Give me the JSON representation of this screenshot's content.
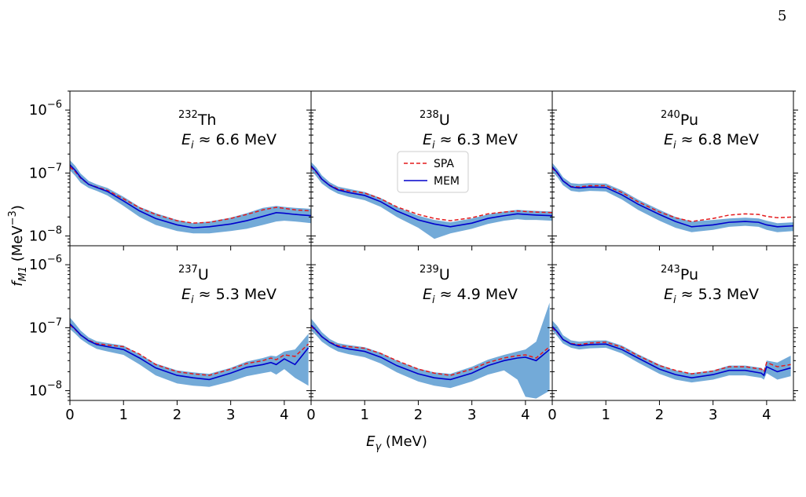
{
  "page_number": "5",
  "colors": {
    "spa": "#e41a1c",
    "mem": "#0000cc",
    "band": "#5a9bd1",
    "axis": "#000000"
  },
  "chart_data": {
    "type": "line",
    "layout": "2x3 grid of panels with shared axes",
    "x_axis": {
      "label_main": "E",
      "label_sub": "γ",
      "label_unit": " (MeV)",
      "ticks": [
        0,
        1,
        2,
        3,
        4
      ],
      "tick_labels": [
        "0",
        "1",
        "2",
        "3",
        "4"
      ]
    },
    "y_axis": {
      "label_main": "f",
      "label_sub": "M1",
      "label_unit_pre": " (MeV",
      "label_unit_sup": "−3",
      "label_unit_post": ")",
      "scale": "log",
      "ticks": [
        1e-08,
        1e-07,
        1e-06
      ],
      "tick_labels": [
        {
          "base": "10",
          "exp": "−8"
        },
        {
          "base": "10",
          "exp": "−7"
        },
        {
          "base": "10",
          "exp": "−6"
        }
      ]
    },
    "legend": {
      "placement": "inside top-center panel, upper-left",
      "panel": 1,
      "entries": [
        "SPA",
        "MEM"
      ]
    },
    "panels": [
      {
        "mass": "232",
        "element": "Th",
        "ei_label": "E",
        "ei_sub": "i",
        "ei_value": " ≈ 6.6 MeV",
        "xlim": [
          0,
          4.5
        ],
        "ylim": [
          7e-09,
          2e-06
        ],
        "x": [
          0,
          0.1,
          0.2,
          0.35,
          0.5,
          0.7,
          1.0,
          1.3,
          1.6,
          2.0,
          2.3,
          2.6,
          3.0,
          3.3,
          3.6,
          3.85,
          4.0,
          4.2,
          4.5
        ],
        "mem": [
          1.35e-07,
          1.1e-07,
          8.5e-08,
          6.6e-08,
          5.9e-08,
          5.1e-08,
          3.6e-08,
          2.5e-08,
          1.9e-08,
          1.5e-08,
          1.35e-08,
          1.4e-08,
          1.55e-08,
          1.75e-08,
          2.05e-08,
          2.35e-08,
          2.3e-08,
          2.2e-08,
          2.1e-08
        ],
        "spa": [
          1.25e-07,
          1.05e-07,
          8.3e-08,
          6.6e-08,
          6e-08,
          5.3e-08,
          3.9e-08,
          2.8e-08,
          2.2e-08,
          1.75e-08,
          1.6e-08,
          1.65e-08,
          1.9e-08,
          2.2e-08,
          2.6e-08,
          2.85e-08,
          2.75e-08,
          2.6e-08,
          2.5e-08
        ],
        "band_low": [
          1.1e-07,
          9e-08,
          7e-08,
          5.8e-08,
          5.2e-08,
          4.4e-08,
          3e-08,
          2e-08,
          1.5e-08,
          1.2e-08,
          1.1e-08,
          1.1e-08,
          1.2e-08,
          1.3e-08,
          1.5e-08,
          1.7e-08,
          1.75e-08,
          1.7e-08,
          1.6e-08
        ],
        "band_high": [
          1.6e-07,
          1.3e-07,
          9.8e-08,
          7.5e-08,
          6.6e-08,
          5.8e-08,
          4.2e-08,
          2.9e-08,
          2.3e-08,
          1.8e-08,
          1.6e-08,
          1.7e-08,
          1.95e-08,
          2.3e-08,
          2.8e-08,
          3e-08,
          2.9e-08,
          2.8e-08,
          2.7e-08
        ]
      },
      {
        "mass": "238",
        "element": "U",
        "ei_label": "E",
        "ei_sub": "i",
        "ei_value": " ≈ 6.3 MeV",
        "xlim": [
          0,
          4.5
        ],
        "ylim": [
          7e-09,
          2e-06
        ],
        "x": [
          0,
          0.1,
          0.2,
          0.35,
          0.5,
          0.7,
          1.0,
          1.3,
          1.6,
          2.0,
          2.3,
          2.6,
          3.0,
          3.3,
          3.6,
          3.85,
          4.0,
          4.2,
          4.5
        ],
        "mem": [
          1.3e-07,
          1.05e-07,
          8e-08,
          6.3e-08,
          5.4e-08,
          4.9e-08,
          4.4e-08,
          3.5e-08,
          2.5e-08,
          1.8e-08,
          1.55e-08,
          1.4e-08,
          1.6e-08,
          1.9e-08,
          2.1e-08,
          2.25e-08,
          2.2e-08,
          2.15e-08,
          2.1e-08
        ],
        "spa": [
          1.25e-07,
          1.02e-07,
          7.9e-08,
          6.4e-08,
          5.6e-08,
          5.2e-08,
          4.8e-08,
          3.9e-08,
          2.9e-08,
          2.2e-08,
          1.9e-08,
          1.75e-08,
          1.95e-08,
          2.25e-08,
          2.4e-08,
          2.5e-08,
          2.45e-08,
          2.4e-08,
          2.35e-08
        ],
        "band_low": [
          1.1e-07,
          8.8e-08,
          6.8e-08,
          5.5e-08,
          4.7e-08,
          4.2e-08,
          3.7e-08,
          2.9e-08,
          2e-08,
          1.35e-08,
          9e-09,
          1.1e-08,
          1.3e-08,
          1.55e-08,
          1.75e-08,
          1.85e-08,
          1.8e-08,
          1.8e-08,
          1.75e-08
        ],
        "band_high": [
          1.5e-07,
          1.22e-07,
          9.2e-08,
          7.1e-08,
          6.1e-08,
          5.6e-08,
          5e-08,
          4e-08,
          2.9e-08,
          2.1e-08,
          1.8e-08,
          1.65e-08,
          1.9e-08,
          2.2e-08,
          2.45e-08,
          2.6e-08,
          2.55e-08,
          2.5e-08,
          2.45e-08
        ]
      },
      {
        "mass": "240",
        "element": "Pu",
        "ei_label": "E",
        "ei_sub": "i",
        "ei_value": " ≈ 6.8 MeV",
        "xlim": [
          0,
          4.5
        ],
        "ylim": [
          7e-09,
          2e-06
        ],
        "x": [
          0,
          0.1,
          0.2,
          0.35,
          0.5,
          0.7,
          1.0,
          1.3,
          1.6,
          2.0,
          2.3,
          2.6,
          3.0,
          3.3,
          3.6,
          3.85,
          4.0,
          4.2,
          4.5
        ],
        "mem": [
          1.25e-07,
          1e-07,
          7.5e-08,
          6e-08,
          5.8e-08,
          6e-08,
          5.9e-08,
          4.5e-08,
          3.2e-08,
          2.2e-08,
          1.7e-08,
          1.4e-08,
          1.5e-08,
          1.65e-08,
          1.7e-08,
          1.65e-08,
          1.5e-08,
          1.4e-08,
          1.45e-08
        ],
        "spa": [
          1.2e-07,
          9.8e-08,
          7.5e-08,
          6.1e-08,
          6e-08,
          6.3e-08,
          6.3e-08,
          4.9e-08,
          3.5e-08,
          2.4e-08,
          1.95e-08,
          1.7e-08,
          1.9e-08,
          2.15e-08,
          2.25e-08,
          2.2e-08,
          2.05e-08,
          1.95e-08,
          2e-08
        ],
        "band_low": [
          1.05e-07,
          8.5e-08,
          6.4e-08,
          5.2e-08,
          5e-08,
          5.2e-08,
          5.1e-08,
          3.8e-08,
          2.6e-08,
          1.75e-08,
          1.35e-08,
          1.15e-08,
          1.25e-08,
          1.4e-08,
          1.45e-08,
          1.4e-08,
          1.25e-08,
          1.15e-08,
          1.2e-08
        ],
        "band_high": [
          1.45e-07,
          1.15e-07,
          8.6e-08,
          6.9e-08,
          6.7e-08,
          6.9e-08,
          6.8e-08,
          5.3e-08,
          3.8e-08,
          2.6e-08,
          2e-08,
          1.7e-08,
          1.8e-08,
          1.9e-08,
          1.95e-08,
          1.9e-08,
          1.75e-08,
          1.6e-08,
          1.65e-08
        ]
      },
      {
        "mass": "237",
        "element": "U",
        "ei_label": "E",
        "ei_sub": "i",
        "ei_value": " ≈ 5.3 MeV",
        "xlim": [
          0,
          4.5
        ],
        "ylim": [
          7e-09,
          2e-06
        ],
        "x": [
          0,
          0.1,
          0.2,
          0.35,
          0.5,
          0.7,
          1.0,
          1.3,
          1.6,
          2.0,
          2.3,
          2.6,
          3.0,
          3.3,
          3.6,
          3.75,
          3.85,
          4.0,
          4.2,
          4.45
        ],
        "mem": [
          1.15e-07,
          9.5e-08,
          7.7e-08,
          6.2e-08,
          5.4e-08,
          5e-08,
          4.5e-08,
          3.3e-08,
          2.3e-08,
          1.75e-08,
          1.6e-08,
          1.5e-08,
          1.9e-08,
          2.35e-08,
          2.6e-08,
          2.8e-08,
          2.6e-08,
          3.2e-08,
          2.6e-08,
          4.8e-08
        ],
        "spa": [
          1.1e-07,
          9.3e-08,
          7.6e-08,
          6.3e-08,
          5.6e-08,
          5.3e-08,
          5e-08,
          3.8e-08,
          2.6e-08,
          2e-08,
          1.85e-08,
          1.75e-08,
          2.2e-08,
          2.7e-08,
          3e-08,
          3.3e-08,
          3.1e-08,
          3.7e-08,
          3.5e-08,
          5.5e-08
        ],
        "band_low": [
          9.5e-08,
          8e-08,
          6.6e-08,
          5.4e-08,
          4.6e-08,
          4.2e-08,
          3.7e-08,
          2.6e-08,
          1.75e-08,
          1.3e-08,
          1.2e-08,
          1.15e-08,
          1.4e-08,
          1.7e-08,
          1.9e-08,
          2e-08,
          1.8e-08,
          2.2e-08,
          1.6e-08,
          1.2e-08
        ],
        "band_high": [
          1.45e-07,
          1.15e-07,
          9e-08,
          7e-08,
          6.1e-08,
          5.7e-08,
          5.2e-08,
          3.8e-08,
          2.7e-08,
          2.1e-08,
          1.95e-08,
          1.85e-08,
          2.3e-08,
          2.9e-08,
          3.3e-08,
          3.6e-08,
          3.5e-08,
          4.2e-08,
          4.5e-08,
          8e-08
        ]
      },
      {
        "mass": "239",
        "element": "U",
        "ei_label": "E",
        "ei_sub": "i",
        "ei_value": " ≈ 4.9 MeV",
        "xlim": [
          0,
          4.5
        ],
        "ylim": [
          7e-09,
          2e-06
        ],
        "x": [
          0,
          0.1,
          0.2,
          0.35,
          0.5,
          0.7,
          1.0,
          1.3,
          1.6,
          2.0,
          2.3,
          2.6,
          3.0,
          3.3,
          3.6,
          3.85,
          4.0,
          4.2,
          4.45
        ],
        "mem": [
          1.1e-07,
          9e-08,
          7.2e-08,
          5.8e-08,
          5e-08,
          4.6e-08,
          4.2e-08,
          3.4e-08,
          2.5e-08,
          1.85e-08,
          1.6e-08,
          1.5e-08,
          1.9e-08,
          2.5e-08,
          3e-08,
          3.3e-08,
          3.4e-08,
          3e-08,
          4.5e-08
        ],
        "spa": [
          1.05e-07,
          8.8e-08,
          7.2e-08,
          5.9e-08,
          5.2e-08,
          5e-08,
          4.7e-08,
          3.9e-08,
          3e-08,
          2.2e-08,
          1.9e-08,
          1.75e-08,
          2.2e-08,
          2.8e-08,
          3.3e-08,
          3.6e-08,
          3.7e-08,
          3.3e-08,
          5e-08
        ],
        "band_low": [
          9e-08,
          7.5e-08,
          6e-08,
          4.9e-08,
          4.2e-08,
          3.8e-08,
          3.4e-08,
          2.7e-08,
          1.95e-08,
          1.4e-08,
          1.2e-08,
          1.1e-08,
          1.4e-08,
          1.8e-08,
          2.1e-08,
          1.5e-08,
          8e-09,
          7.5e-09,
          1e-08
        ],
        "band_high": [
          1.4e-07,
          1.1e-07,
          8.5e-08,
          6.6e-08,
          5.7e-08,
          5.3e-08,
          4.9e-08,
          4e-08,
          3e-08,
          2.25e-08,
          1.95e-08,
          1.85e-08,
          2.4e-08,
          3.1e-08,
          3.7e-08,
          4.2e-08,
          4.5e-08,
          6e-08,
          2.5e-07
        ]
      },
      {
        "mass": "243",
        "element": "Pu",
        "ei_label": "E",
        "ei_sub": "i",
        "ei_value": " ≈ 5.3 MeV",
        "xlim": [
          0,
          4.5
        ],
        "ylim": [
          7e-09,
          2e-06
        ],
        "x": [
          0,
          0.1,
          0.2,
          0.35,
          0.5,
          0.7,
          1.0,
          1.3,
          1.6,
          2.0,
          2.3,
          2.6,
          3.0,
          3.3,
          3.6,
          3.9,
          3.95,
          4.0,
          4.2,
          4.45
        ],
        "mem": [
          1.05e-07,
          8.5e-08,
          6.5e-08,
          5.5e-08,
          5.2e-08,
          5.4e-08,
          5.5e-08,
          4.5e-08,
          3.3e-08,
          2.2e-08,
          1.8e-08,
          1.6e-08,
          1.8e-08,
          2.1e-08,
          2.1e-08,
          1.9e-08,
          1.75e-08,
          2.4e-08,
          2e-08,
          2.3e-08
        ],
        "spa": [
          1e-07,
          8.3e-08,
          6.5e-08,
          5.6e-08,
          5.4e-08,
          5.7e-08,
          5.9e-08,
          4.9e-08,
          3.6e-08,
          2.5e-08,
          2.1e-08,
          1.85e-08,
          2.05e-08,
          2.4e-08,
          2.4e-08,
          2.2e-08,
          2e-08,
          2.8e-08,
          2.4e-08,
          2.6e-08
        ],
        "band_low": [
          9e-08,
          7.2e-08,
          5.6e-08,
          4.8e-08,
          4.5e-08,
          4.7e-08,
          4.8e-08,
          3.9e-08,
          2.8e-08,
          1.85e-08,
          1.5e-08,
          1.35e-08,
          1.5e-08,
          1.75e-08,
          1.75e-08,
          1.6e-08,
          1.5e-08,
          1.9e-08,
          1.5e-08,
          1.7e-08
        ],
        "band_high": [
          1.3e-07,
          1.05e-07,
          7.6e-08,
          6.3e-08,
          6e-08,
          6.2e-08,
          6.3e-08,
          5.2e-08,
          3.8e-08,
          2.6e-08,
          2.1e-08,
          1.9e-08,
          2.1e-08,
          2.5e-08,
          2.5e-08,
          2.3e-08,
          2.1e-08,
          3e-08,
          2.8e-08,
          3.6e-08
        ]
      }
    ]
  }
}
